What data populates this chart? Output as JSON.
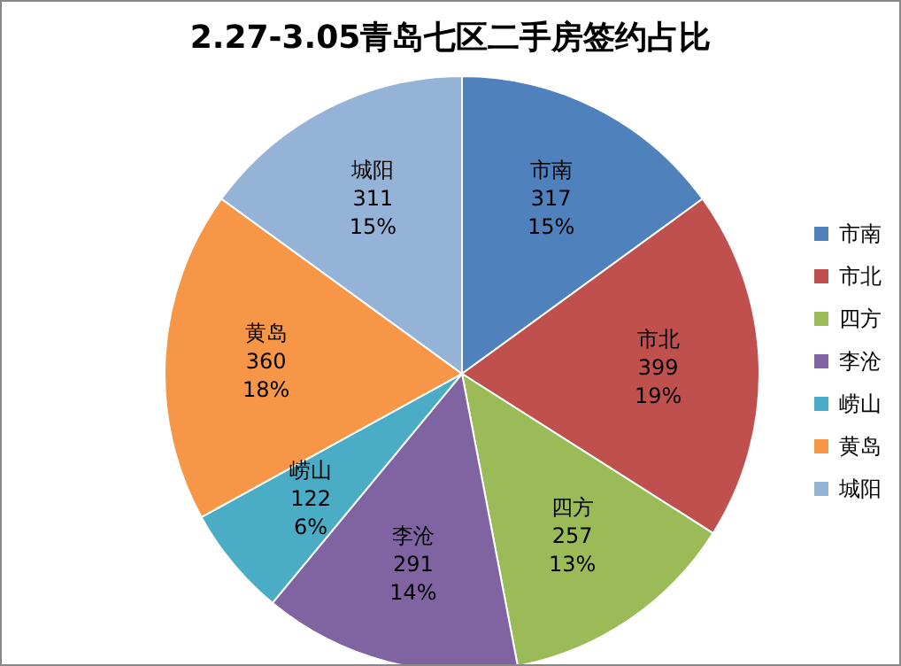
{
  "chart_data": {
    "type": "pie",
    "title": "2.27-3.05青岛七区二手房签约占比",
    "categories": [
      "市南",
      "市北",
      "四方",
      "李沧",
      "崂山",
      "黄岛",
      "城阳"
    ],
    "values": [
      15,
      19,
      13,
      14,
      6,
      18,
      15
    ],
    "colors": [
      "#4f81bd",
      "#c0504d",
      "#9bbb59",
      "#8064a2",
      "#4bacc6",
      "#f79646",
      "#95b3d7"
    ],
    "value_labels": [
      "317\n15%",
      "399\n19%",
      "257\n13%",
      "291\n14%",
      "122\n6%",
      "360\n18%",
      "311\n15%"
    ],
    "legend": "right"
  }
}
